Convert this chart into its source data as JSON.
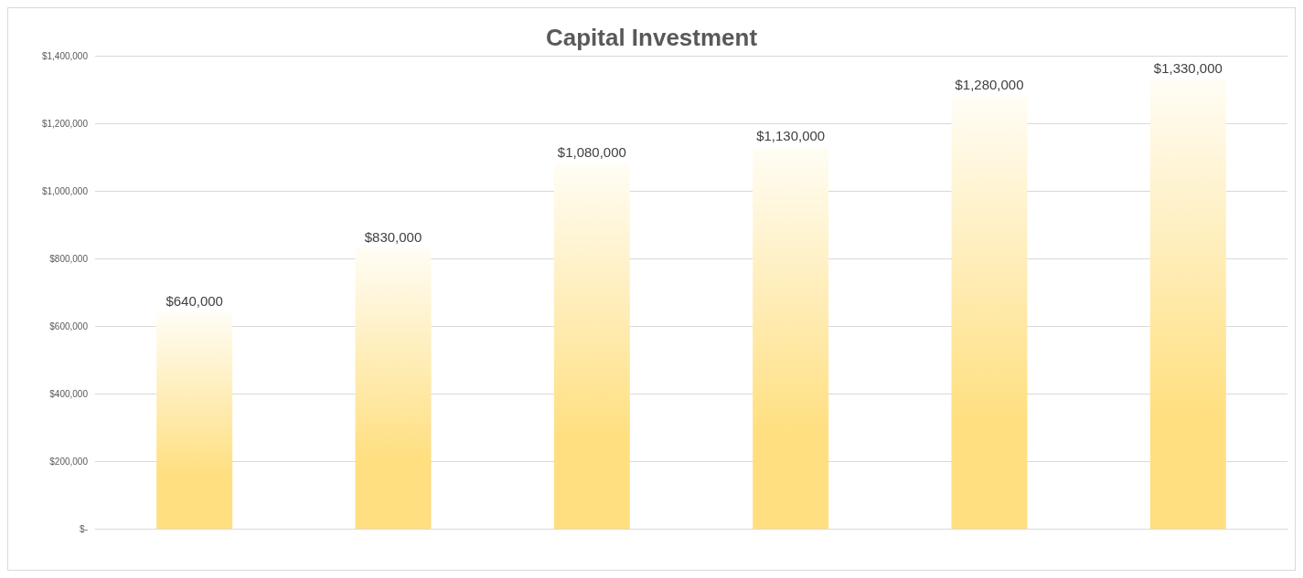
{
  "chart_data": {
    "type": "bar",
    "title": "Capital Investment",
    "categories": [
      null,
      null,
      null,
      null,
      null,
      null
    ],
    "values": [
      640000,
      830000,
      1080000,
      1130000,
      1280000,
      1330000
    ],
    "value_labels": [
      "$640,000",
      "$830,000",
      "$1,080,000",
      "$1,130,000",
      "$1,280,000",
      "$1,330,000"
    ],
    "color": "#ffdf80",
    "ylim": [
      0,
      1400000
    ],
    "yticks": [
      {
        "value": 0,
        "label": "$-"
      },
      {
        "value": 200000,
        "label": "$200,000"
      },
      {
        "value": 400000,
        "label": "$400,000"
      },
      {
        "value": 600000,
        "label": "$600,000"
      },
      {
        "value": 800000,
        "label": "$800,000"
      },
      {
        "value": 1000000,
        "label": "$1,000,000"
      },
      {
        "value": 1200000,
        "label": "$1,200,000"
      },
      {
        "value": 1400000,
        "label": "$1,400,000"
      }
    ],
    "grid": "y"
  }
}
